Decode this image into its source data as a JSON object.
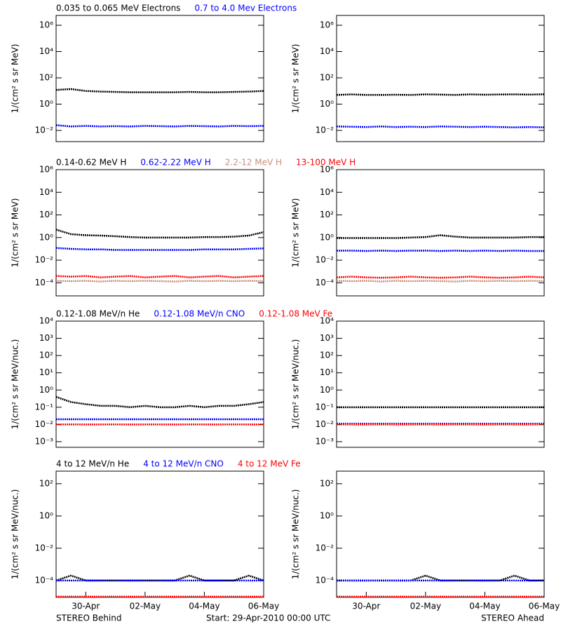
{
  "chart_data": [
    {
      "type": "scatter",
      "ylabel": "1/(cm² s sr MeV)",
      "log_y": true,
      "ylim": [
        0.0014,
        5600000
      ],
      "yticks": [
        {
          "value": 0.01,
          "label": "10⁻²"
        },
        {
          "value": 1,
          "label": "10⁰"
        },
        {
          "value": 100,
          "label": "10²"
        },
        {
          "value": 10000,
          "label": "10⁴"
        },
        {
          "value": 1000000,
          "label": "10⁶"
        }
      ],
      "xlim": [
        0,
        7
      ],
      "x": [
        0,
        0.5,
        1,
        1.5,
        2,
        2.5,
        3,
        3.5,
        4,
        4.5,
        5,
        5.5,
        6,
        6.5,
        7
      ],
      "series": [
        {
          "name": "0.035 to 0.065 MeV Electrons",
          "color": "#000000",
          "values": [
            12,
            14,
            10,
            9,
            8.5,
            8,
            8,
            8,
            8,
            8.5,
            8,
            8,
            8.5,
            9,
            10
          ]
        },
        {
          "name": "0.7 to 4.0 Mev Electrons",
          "color": "#0000ff",
          "values": [
            0.025,
            0.02,
            0.022,
            0.02,
            0.021,
            0.02,
            0.022,
            0.021,
            0.02,
            0.022,
            0.021,
            0.02,
            0.022,
            0.021,
            0.022
          ]
        }
      ]
    },
    {
      "type": "scatter",
      "ylabel": "1/(cm² s sr MeV)",
      "log_y": true,
      "ylim": [
        0.0014,
        5600000
      ],
      "yticks": [
        {
          "value": 0.01,
          "label": "10⁻²"
        },
        {
          "value": 1,
          "label": "10⁰"
        },
        {
          "value": 100,
          "label": "10²"
        },
        {
          "value": 10000,
          "label": "10⁴"
        },
        {
          "value": 1000000,
          "label": "10⁶"
        }
      ],
      "xlim": [
        0,
        7
      ],
      "x": [
        0,
        0.5,
        1,
        1.5,
        2,
        2.5,
        3,
        3.5,
        4,
        4.5,
        5,
        5.5,
        6,
        6.5,
        7
      ],
      "series": [
        {
          "color": "#000000",
          "values": [
            5,
            5.5,
            5,
            5,
            5.2,
            5,
            5.5,
            5.3,
            5,
            5.5,
            5.2,
            5.4,
            5.5,
            5.3,
            5.6
          ]
        },
        {
          "color": "#0000ff",
          "values": [
            0.02,
            0.019,
            0.018,
            0.02,
            0.018,
            0.019,
            0.018,
            0.02,
            0.019,
            0.018,
            0.019,
            0.018,
            0.017,
            0.018,
            0.017
          ]
        }
      ]
    },
    {
      "type": "scatter",
      "ylabel": "1/(cm² s sr MeV)",
      "log_y": true,
      "ylim": [
        7e-06,
        1000000
      ],
      "yticks": [
        {
          "value": 0.0001,
          "label": "10⁻⁴"
        },
        {
          "value": 0.01,
          "label": "10⁻²"
        },
        {
          "value": 1,
          "label": "10⁰"
        },
        {
          "value": 100,
          "label": "10²"
        },
        {
          "value": 10000,
          "label": "10⁴"
        },
        {
          "value": 1000000,
          "label": "10⁶"
        }
      ],
      "xlim": [
        0,
        7
      ],
      "x": [
        0,
        0.5,
        1,
        1.5,
        2,
        2.5,
        3,
        3.5,
        4,
        4.5,
        5,
        5.5,
        6,
        6.5,
        7
      ],
      "series": [
        {
          "name": "0.14-0.62 MeV H",
          "color": "#000000",
          "values": [
            5,
            2,
            1.6,
            1.5,
            1.3,
            1.1,
            1,
            1,
            1,
            1,
            1.1,
            1.1,
            1.2,
            1.5,
            3
          ]
        },
        {
          "name": "0.62-2.22 MeV H",
          "color": "#0000ff",
          "values": [
            0.12,
            0.1,
            0.09,
            0.09,
            0.08,
            0.08,
            0.08,
            0.08,
            0.08,
            0.08,
            0.09,
            0.09,
            0.09,
            0.1,
            0.11
          ]
        },
        {
          "name": "2.2-12 MeV H",
          "color": "#c8907a",
          "values": [
            0.00015,
            0.00014,
            0.00015,
            0.00013,
            0.00015,
            0.00014,
            0.00015,
            0.00014,
            0.00013,
            0.00015,
            0.00014,
            0.00015,
            0.00014,
            0.00015,
            0.00014
          ]
        },
        {
          "name": "13-100 MeV H",
          "color": "#ff0000",
          "values": [
            0.0004,
            0.00035,
            0.0004,
            0.0003,
            0.00035,
            0.0004,
            0.0003,
            0.00035,
            0.0004,
            0.0003,
            0.00035,
            0.0004,
            0.0003,
            0.00035,
            0.0004
          ]
        }
      ]
    },
    {
      "type": "scatter",
      "ylabel": "1/(cm² s sr MeV)",
      "log_y": true,
      "ylim": [
        7e-06,
        1000000
      ],
      "yticks": [
        {
          "value": 0.0001,
          "label": "10⁻⁴"
        },
        {
          "value": 0.01,
          "label": "10⁻²"
        },
        {
          "value": 1,
          "label": "10⁰"
        },
        {
          "value": 100,
          "label": "10²"
        },
        {
          "value": 10000,
          "label": "10⁴"
        },
        {
          "value": 1000000,
          "label": "10⁶"
        }
      ],
      "xlim": [
        0,
        7
      ],
      "x": [
        0,
        0.5,
        1,
        1.5,
        2,
        2.5,
        3,
        3.5,
        4,
        4.5,
        5,
        5.5,
        6,
        6.5,
        7
      ],
      "series": [
        {
          "color": "#000000",
          "values": [
            0.9,
            0.9,
            0.9,
            0.9,
            0.9,
            1,
            1.1,
            1.6,
            1.2,
            1,
            1,
            1,
            1,
            1.1,
            1.1
          ]
        },
        {
          "color": "#0000ff",
          "values": [
            0.07,
            0.07,
            0.065,
            0.07,
            0.065,
            0.07,
            0.07,
            0.065,
            0.07,
            0.065,
            0.07,
            0.065,
            0.07,
            0.065,
            0.065
          ]
        },
        {
          "color": "#c8907a",
          "values": [
            0.00015,
            0.00014,
            0.00015,
            0.00013,
            0.00015,
            0.00014,
            0.00015,
            0.00014,
            0.00013,
            0.00015,
            0.00014,
            0.00015,
            0.00014,
            0.00015,
            0.00014
          ]
        },
        {
          "color": "#ff0000",
          "values": [
            0.0003,
            0.00035,
            0.0003,
            0.00028,
            0.0003,
            0.00035,
            0.0003,
            0.00028,
            0.0003,
            0.00035,
            0.0003,
            0.00028,
            0.0003,
            0.00035,
            0.0003
          ]
        }
      ]
    },
    {
      "type": "scatter",
      "ylabel": "1/(cm² s sr MeV/nuc.)",
      "log_y": true,
      "ylim": [
        0.00047,
        10000
      ],
      "yticks": [
        {
          "value": 0.001,
          "label": "10⁻³"
        },
        {
          "value": 0.01,
          "label": "10⁻²"
        },
        {
          "value": 0.1,
          "label": "10⁻¹"
        },
        {
          "value": 1,
          "label": "10⁰"
        },
        {
          "value": 10,
          "label": "10¹"
        },
        {
          "value": 100,
          "label": "10²"
        },
        {
          "value": 1000,
          "label": "10³"
        },
        {
          "value": 10000,
          "label": "10⁴"
        }
      ],
      "xlim": [
        0,
        7
      ],
      "x": [
        0,
        0.5,
        1,
        1.5,
        2,
        2.5,
        3,
        3.5,
        4,
        4.5,
        5,
        5.5,
        6,
        6.5,
        7
      ],
      "series": [
        {
          "name": "0.12-1.08 MeV/n He",
          "color": "#000000",
          "values": [
            0.4,
            0.2,
            0.15,
            0.12,
            0.12,
            0.1,
            0.12,
            0.1,
            0.1,
            0.12,
            0.1,
            0.12,
            0.12,
            0.15,
            0.2
          ]
        },
        {
          "name": "0.12-1.08 MeV/n CNO",
          "color": "#0000ff",
          "values": [
            0.02,
            0.02,
            0.02,
            0.02,
            0.02,
            0.02,
            0.02,
            0.02,
            0.02,
            0.02,
            0.02,
            0.02,
            0.02,
            0.02,
            0.02
          ]
        },
        {
          "name": "0.12-1.08 MeV Fe",
          "color": "#ff0000",
          "values": [
            0.01,
            0.01,
            0.01,
            0.01,
            0.01,
            0.01,
            0.01,
            0.01,
            0.01,
            0.01,
            0.01,
            0.01,
            0.01,
            0.01,
            0.01
          ]
        }
      ]
    },
    {
      "type": "scatter",
      "ylabel": "1/(cm² s sr MeV/nuc.)",
      "log_y": true,
      "ylim": [
        0.00047,
        10000
      ],
      "yticks": [
        {
          "value": 0.001,
          "label": "10⁻³"
        },
        {
          "value": 0.01,
          "label": "10⁻²"
        },
        {
          "value": 0.1,
          "label": "10⁻¹"
        },
        {
          "value": 1,
          "label": "10⁰"
        },
        {
          "value": 10,
          "label": "10¹"
        },
        {
          "value": 100,
          "label": "10²"
        },
        {
          "value": 1000,
          "label": "10³"
        },
        {
          "value": 10000,
          "label": "10⁴"
        }
      ],
      "xlim": [
        0,
        7
      ],
      "x": [
        0,
        0.5,
        1,
        1.5,
        2,
        2.5,
        3,
        3.5,
        4,
        4.5,
        5,
        5.5,
        6,
        6.5,
        7
      ],
      "series": [
        {
          "color": "#000000",
          "values": [
            0.1,
            0.1,
            0.1,
            0.1,
            0.1,
            0.1,
            0.1,
            0.1,
            0.1,
            0.1,
            0.1,
            0.1,
            0.1,
            0.1,
            0.1
          ]
        },
        {
          "color": "#0000ff",
          "values": [
            0.011,
            0.011,
            0.011,
            0.011,
            0.011,
            0.011,
            0.011,
            0.011,
            0.011,
            0.011,
            0.011,
            0.011,
            0.011,
            0.011,
            0.011
          ]
        },
        {
          "color": "#ff0000",
          "values": [
            0.01,
            0.01,
            0.01,
            0.01,
            0.01,
            0.01,
            0.01,
            0.01,
            0.01,
            0.01,
            0.01,
            0.01,
            0.01,
            0.01,
            0.01
          ]
        }
      ]
    },
    {
      "type": "scatter",
      "ylabel": "1/(cm² s sr MeV/nuc.)",
      "log_y": true,
      "ylim": [
        9e-06,
        600
      ],
      "yticks": [
        {
          "value": 0.0001,
          "label": "10⁻⁴"
        },
        {
          "value": 0.01,
          "label": "10⁻²"
        },
        {
          "value": 1,
          "label": "10⁰"
        },
        {
          "value": 100,
          "label": "10²"
        }
      ],
      "xlim": [
        0,
        7
      ],
      "x": [
        0,
        0.5,
        1,
        1.5,
        2,
        2.5,
        3,
        3.5,
        4,
        4.5,
        5,
        5.5,
        6,
        6.5,
        7
      ],
      "xticks": [
        {
          "value": 1,
          "label": "30-Apr"
        },
        {
          "value": 3,
          "label": "02-May"
        },
        {
          "value": 5,
          "label": "04-May"
        },
        {
          "value": 7,
          "label": "06-May"
        }
      ],
      "series": [
        {
          "name": "4 to 12 MeV/n He",
          "color": "#000000",
          "values": [
            0.0001,
            0.0002,
            0.0001,
            0.0001,
            0.0001,
            0.0001,
            0.0001,
            0.0001,
            0.0001,
            0.0002,
            0.0001,
            0.0001,
            0.0001,
            0.0002,
            0.0001
          ]
        },
        {
          "name": "4 to 12 MeV/n CNO",
          "color": "#0000ff",
          "values": [
            0.0001,
            0.0001,
            0.0001,
            0.0001,
            0.0001,
            0.0001,
            0.0001,
            0.0001,
            0.0001,
            0.0001,
            0.0001,
            0.0001,
            0.0001,
            0.0001,
            0.0001
          ]
        },
        {
          "name": "4 to 12 MeV Fe",
          "color": "#ff0000",
          "values": [
            1e-05,
            1e-05,
            1e-05,
            1e-05,
            1e-05,
            1e-05,
            1e-05,
            1e-05,
            1e-05,
            1e-05,
            1e-05,
            1e-05,
            1e-05,
            1e-05,
            1e-05
          ]
        }
      ]
    },
    {
      "type": "scatter",
      "ylabel": "1/(cm² s sr MeV/nuc.)",
      "log_y": true,
      "ylim": [
        9e-06,
        600
      ],
      "yticks": [
        {
          "value": 0.0001,
          "label": "10⁻⁴"
        },
        {
          "value": 0.01,
          "label": "10⁻²"
        },
        {
          "value": 1,
          "label": "10⁰"
        },
        {
          "value": 100,
          "label": "10²"
        }
      ],
      "xlim": [
        0,
        7
      ],
      "x": [
        0,
        0.5,
        1,
        1.5,
        2,
        2.5,
        3,
        3.5,
        4,
        4.5,
        5,
        5.5,
        6,
        6.5,
        7
      ],
      "xticks": [
        {
          "value": 1,
          "label": "30-Apr"
        },
        {
          "value": 3,
          "label": "02-May"
        },
        {
          "value": 5,
          "label": "04-May"
        },
        {
          "value": 7,
          "label": "06-May"
        }
      ],
      "series": [
        {
          "color": "#000000",
          "values": [
            0.0001,
            0.0001,
            0.0001,
            0.0001,
            0.0001,
            0.0001,
            0.0002,
            0.0001,
            0.0001,
            0.0001,
            0.0001,
            0.0001,
            0.0002,
            0.0001,
            0.0001
          ]
        },
        {
          "color": "#0000ff",
          "values": [
            0.0001,
            0.0001,
            0.0001,
            0.0001,
            0.0001,
            0.0001,
            0.0001,
            0.0001,
            0.0001,
            0.0001,
            0.0001,
            0.0001,
            0.0001,
            0.0001,
            0.0001
          ]
        },
        {
          "color": "#ff0000",
          "values": [
            1e-05,
            1e-05,
            1e-05,
            1e-05,
            1e-05,
            1e-05,
            1e-05,
            1e-05,
            1e-05,
            1e-05,
            1e-05,
            1e-05,
            1e-05,
            1e-05,
            1e-05
          ]
        }
      ]
    }
  ],
  "footer": {
    "left": "STEREO Behind",
    "center": "Start: 29-Apr-2010 00:00 UTC",
    "right": "STEREO Ahead"
  }
}
